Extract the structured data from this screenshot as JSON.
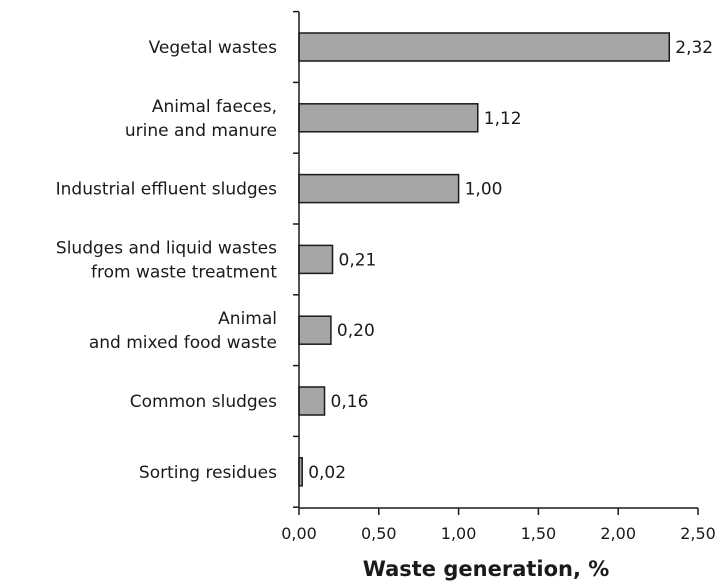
{
  "chart_data": {
    "type": "bar",
    "orientation": "horizontal",
    "categories": [
      [
        "Vegetal wastes"
      ],
      [
        "Animal faeces,",
        "urine and manure"
      ],
      [
        "Industrial effluent sludges"
      ],
      [
        "Sludges and liquid wastes",
        "from waste treatment"
      ],
      [
        "Animal",
        "and mixed food waste"
      ],
      [
        "Common sludges"
      ],
      [
        "Sorting residues"
      ]
    ],
    "values": [
      2.32,
      1.12,
      1.0,
      0.21,
      0.2,
      0.16,
      0.02
    ],
    "value_labels": [
      "2,32",
      "1,12",
      "1,00",
      "0,21",
      "0,20",
      "0,16",
      "0,02"
    ],
    "xlabel": "Waste generation, %",
    "ylabel": "",
    "xlim": [
      0,
      2.5
    ],
    "xticks": [
      0,
      0.5,
      1.0,
      1.5,
      2.0,
      2.5
    ],
    "xtick_labels": [
      "0,00",
      "0,50",
      "1,00",
      "1,50",
      "2,00",
      "2,50"
    ],
    "grid": false,
    "bar_color": "#a6a6a6",
    "edge_color": "#1a1a1a"
  }
}
